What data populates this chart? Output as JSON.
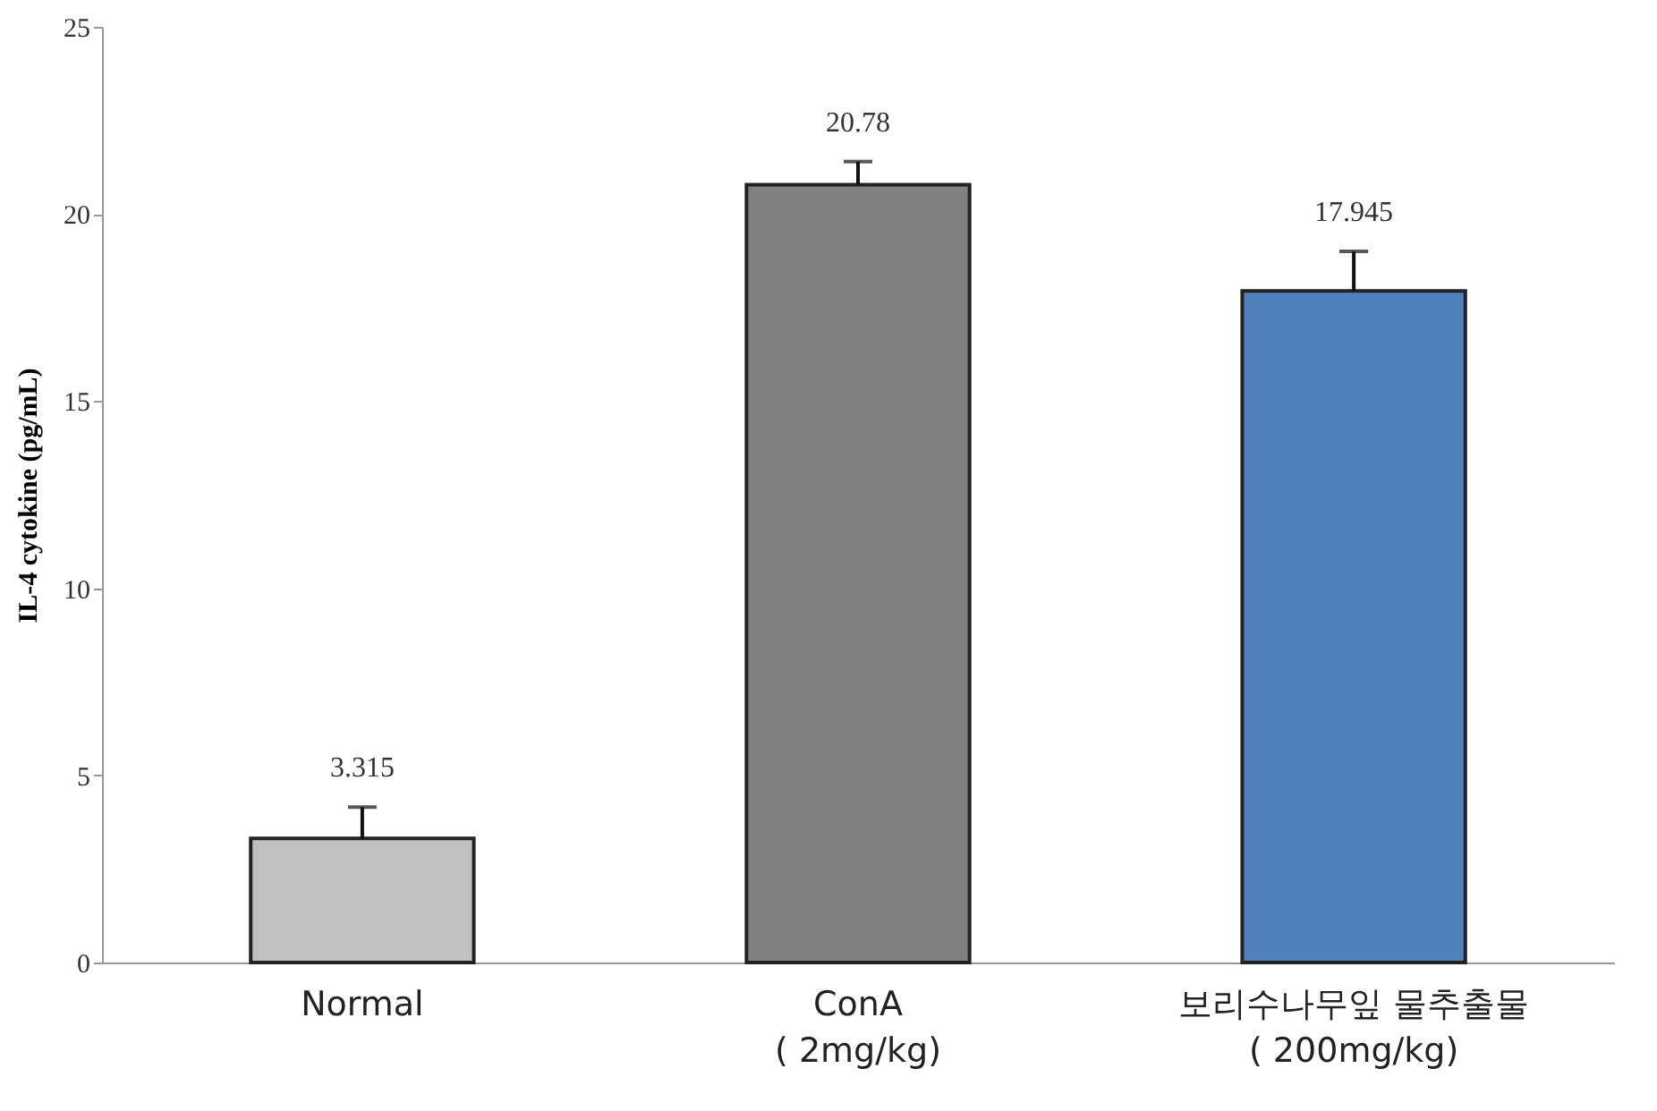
{
  "chart_data": {
    "type": "bar",
    "ylabel": "IL-4 cytokine (pg/mL)",
    "categories": [
      "Normal",
      "ConA\n( 2mg/kg)",
      "보리수나무잎 물추출물\n( 200mg/kg)"
    ],
    "values": [
      3.315,
      20.78,
      17.945
    ],
    "colors": [
      "#c0c0c0",
      "#808080",
      "#4f81bd"
    ],
    "errors": [
      [
        3.315,
        4.15
      ],
      [
        20.78,
        21.4
      ],
      [
        17.945,
        19.0
      ]
    ],
    "ylim": [
      0,
      25
    ],
    "yticks": [
      0,
      5,
      10,
      15,
      20,
      25
    ],
    "data_labels": true,
    "grid": false
  }
}
